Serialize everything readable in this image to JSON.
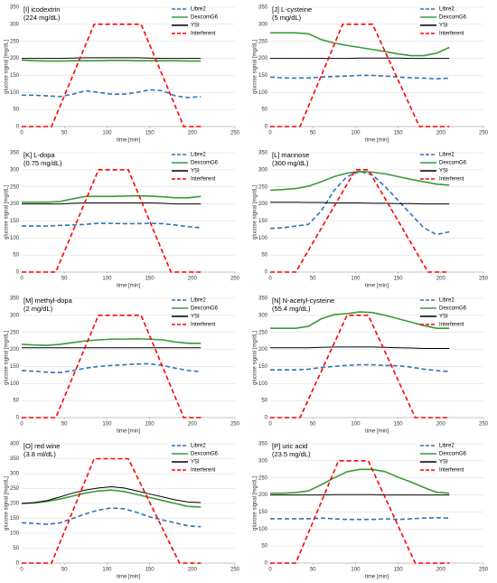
{
  "chart_data": [
    {
      "type": "line",
      "title": "[I] icodextrin",
      "subtitle": "(224 mg/dL)",
      "xlabel": "time [min]",
      "ylabel": "glucose signal [mg/dL]",
      "x": [
        0,
        15,
        30,
        45,
        60,
        75,
        90,
        105,
        120,
        135,
        150,
        165,
        180,
        195,
        210
      ],
      "xlim": [
        0,
        250
      ],
      "xticks": [
        0,
        50,
        100,
        150,
        200,
        250
      ],
      "ylim": [
        0,
        350
      ],
      "yticks": [
        0,
        50,
        100,
        150,
        200,
        250,
        300,
        350
      ],
      "legend": "top-right",
      "series": [
        {
          "name": "Libre2",
          "color": "#2e75b6",
          "style": "dashed",
          "values": [
            92,
            92,
            90,
            88,
            95,
            105,
            100,
            95,
            95,
            100,
            108,
            105,
            90,
            85,
            88
          ]
        },
        {
          "name": "DexcomG6",
          "color": "#3a9a3a",
          "style": "solid",
          "values": [
            195,
            193,
            192,
            192,
            193,
            193,
            193,
            194,
            194,
            193,
            193,
            193,
            193,
            192,
            192
          ]
        },
        {
          "name": "YSI",
          "color": "#000000",
          "style": "solid",
          "values": [
            200,
            200,
            200,
            200,
            201,
            202,
            202,
            202,
            202,
            202,
            201,
            200,
            200,
            200,
            200
          ]
        },
        {
          "name": "Interferent",
          "color": "#ff0000",
          "style": "dashed",
          "x": [
            0,
            35,
            85,
            140,
            190,
            210
          ],
          "values": [
            0,
            0,
            300,
            300,
            0,
            0
          ]
        }
      ]
    },
    {
      "type": "line",
      "title": "[J] L-cysteine",
      "subtitle": "(5 mg/dL)",
      "xlabel": "time [min]",
      "ylabel": "glucose signal [mg/dL]",
      "x": [
        0,
        15,
        30,
        45,
        60,
        75,
        90,
        105,
        120,
        135,
        150,
        165,
        180,
        195,
        210
      ],
      "xlim": [
        0,
        250
      ],
      "xticks": [
        0,
        50,
        100,
        150,
        200,
        250
      ],
      "ylim": [
        0,
        350
      ],
      "yticks": [
        0,
        50,
        100,
        150,
        200,
        250,
        300,
        350
      ],
      "legend": "top-right",
      "series": [
        {
          "name": "Libre2",
          "color": "#2e75b6",
          "style": "dashed",
          "values": [
            145,
            143,
            142,
            143,
            145,
            147,
            148,
            150,
            150,
            148,
            145,
            143,
            142,
            140,
            142
          ]
        },
        {
          "name": "DexcomG6",
          "color": "#3a9a3a",
          "style": "solid",
          "values": [
            275,
            275,
            275,
            272,
            255,
            245,
            238,
            232,
            226,
            220,
            213,
            208,
            208,
            215,
            232
          ]
        },
        {
          "name": "YSI",
          "color": "#000000",
          "style": "solid",
          "values": [
            200,
            200,
            200,
            200,
            200,
            200,
            200,
            201,
            201,
            201,
            201,
            200,
            200,
            200,
            200
          ]
        },
        {
          "name": "Interferent",
          "color": "#ff0000",
          "style": "dashed",
          "x": [
            0,
            35,
            85,
            120,
            175,
            210
          ],
          "values": [
            0,
            0,
            300,
            300,
            0,
            0
          ]
        }
      ]
    },
    {
      "type": "line",
      "title": "[K] L-dopa",
      "subtitle": "(0.75 mg/dL)",
      "xlabel": "time [min]",
      "ylabel": "glucose signal [mg/dL]",
      "x": [
        0,
        15,
        30,
        45,
        60,
        75,
        90,
        105,
        120,
        135,
        150,
        165,
        180,
        195,
        210
      ],
      "xlim": [
        0,
        250
      ],
      "xticks": [
        0,
        50,
        100,
        150,
        200,
        250
      ],
      "ylim": [
        0,
        350
      ],
      "yticks": [
        0,
        50,
        100,
        150,
        200,
        250,
        300,
        350
      ],
      "legend": "top-right",
      "series": [
        {
          "name": "Libre2",
          "color": "#2e75b6",
          "style": "dashed",
          "values": [
            135,
            135,
            135,
            137,
            138,
            140,
            143,
            143,
            142,
            142,
            143,
            142,
            138,
            133,
            130
          ]
        },
        {
          "name": "DexcomG6",
          "color": "#3a9a3a",
          "style": "solid",
          "values": [
            205,
            205,
            205,
            207,
            215,
            222,
            222,
            222,
            223,
            224,
            223,
            221,
            218,
            218,
            222
          ]
        },
        {
          "name": "YSI",
          "color": "#000000",
          "style": "solid",
          "values": [
            200,
            200,
            200,
            200,
            202,
            203,
            203,
            203,
            203,
            203,
            203,
            202,
            200,
            200,
            200
          ]
        },
        {
          "name": "Interferent",
          "color": "#ff0000",
          "style": "dashed",
          "x": [
            0,
            40,
            90,
            125,
            175,
            210
          ],
          "values": [
            0,
            0,
            300,
            300,
            0,
            0
          ]
        }
      ]
    },
    {
      "type": "line",
      "title": "[L] mannose",
      "subtitle": "(300 mg/dL)",
      "xlabel": "time [min]",
      "ylabel": "glucose signal [mg/dL]",
      "x": [
        0,
        15,
        30,
        45,
        60,
        75,
        90,
        105,
        120,
        135,
        150,
        165,
        180,
        195,
        210
      ],
      "xlim": [
        0,
        250
      ],
      "xticks": [
        0,
        50,
        100,
        150,
        200,
        250
      ],
      "ylim": [
        0,
        350
      ],
      "yticks": [
        0,
        50,
        100,
        150,
        200,
        250,
        300,
        350
      ],
      "legend": "top-right",
      "series": [
        {
          "name": "Libre2",
          "color": "#2e75b6",
          "style": "dashed",
          "values": [
            128,
            130,
            135,
            140,
            180,
            240,
            280,
            295,
            285,
            250,
            210,
            170,
            130,
            110,
            118
          ]
        },
        {
          "name": "DexcomG6",
          "color": "#3a9a3a",
          "style": "solid",
          "values": [
            240,
            242,
            245,
            252,
            265,
            280,
            290,
            295,
            293,
            288,
            280,
            272,
            265,
            258,
            255
          ]
        },
        {
          "name": "YSI",
          "color": "#000000",
          "style": "solid",
          "values": [
            205,
            205,
            205,
            204,
            204,
            203,
            203,
            203,
            202,
            202,
            201,
            201,
            200,
            200,
            200
          ]
        },
        {
          "name": "Interferent",
          "color": "#ff0000",
          "style": "dashed",
          "x": [
            0,
            30,
            100,
            115,
            185,
            210
          ],
          "values": [
            0,
            0,
            300,
            300,
            0,
            0
          ]
        }
      ]
    },
    {
      "type": "line",
      "title": "[M] methyl-dopa",
      "subtitle": "(2 mg/dL)",
      "xlabel": "time [min]",
      "ylabel": "glucose signal [mg/dL]",
      "x": [
        0,
        15,
        30,
        45,
        60,
        75,
        90,
        105,
        120,
        135,
        150,
        165,
        180,
        195,
        210
      ],
      "xlim": [
        0,
        250
      ],
      "xticks": [
        0,
        50,
        100,
        150,
        200,
        250
      ],
      "ylim": [
        0,
        350
      ],
      "yticks": [
        0,
        50,
        100,
        150,
        200,
        250,
        300,
        350
      ],
      "legend": "top-right",
      "series": [
        {
          "name": "Libre2",
          "color": "#2e75b6",
          "style": "dashed",
          "values": [
            138,
            136,
            133,
            132,
            138,
            145,
            150,
            153,
            155,
            157,
            158,
            153,
            145,
            138,
            135
          ]
        },
        {
          "name": "DexcomG6",
          "color": "#3a9a3a",
          "style": "solid",
          "values": [
            215,
            213,
            212,
            215,
            220,
            225,
            228,
            230,
            230,
            231,
            230,
            228,
            222,
            218,
            218
          ]
        },
        {
          "name": "YSI",
          "color": "#000000",
          "style": "solid",
          "values": [
            205,
            205,
            205,
            205,
            205,
            205,
            205,
            205,
            205,
            205,
            205,
            205,
            205,
            205,
            205
          ]
        },
        {
          "name": "Interferent",
          "color": "#ff0000",
          "style": "dashed",
          "x": [
            0,
            40,
            90,
            140,
            190,
            210
          ],
          "values": [
            0,
            0,
            300,
            300,
            0,
            0
          ]
        }
      ]
    },
    {
      "type": "line",
      "title": "[N] N-acetyl-cysteine",
      "subtitle": "(55.4 mg/dL)",
      "xlabel": "time [min]",
      "ylabel": "glucose signal [mg/dL]",
      "x": [
        0,
        15,
        30,
        45,
        60,
        75,
        90,
        105,
        120,
        135,
        150,
        165,
        180,
        195,
        210
      ],
      "xlim": [
        0,
        250
      ],
      "xticks": [
        0,
        50,
        100,
        150,
        200,
        250
      ],
      "ylim": [
        0,
        350
      ],
      "yticks": [
        0,
        50,
        100,
        150,
        200,
        250,
        300,
        350
      ],
      "legend": "top-right",
      "series": [
        {
          "name": "Libre2",
          "color": "#2e75b6",
          "style": "dashed",
          "values": [
            140,
            140,
            140,
            142,
            147,
            150,
            153,
            155,
            155,
            153,
            152,
            148,
            142,
            138,
            135
          ]
        },
        {
          "name": "DexcomG6",
          "color": "#3a9a3a",
          "style": "solid",
          "values": [
            262,
            262,
            262,
            268,
            290,
            302,
            305,
            310,
            308,
            300,
            290,
            280,
            270,
            262,
            262
          ]
        },
        {
          "name": "YSI",
          "color": "#000000",
          "style": "solid",
          "values": [
            205,
            205,
            205,
            205,
            206,
            207,
            207,
            207,
            207,
            206,
            205,
            204,
            203,
            203,
            203
          ]
        },
        {
          "name": "Interferent",
          "color": "#ff0000",
          "style": "dashed",
          "x": [
            0,
            35,
            90,
            115,
            170,
            210
          ],
          "values": [
            0,
            0,
            300,
            300,
            0,
            0
          ]
        }
      ]
    },
    {
      "type": "line",
      "title": "[O] red wine",
      "subtitle": "(3.8 ml/dL)",
      "xlabel": "time [min]",
      "ylabel": "glucose signal [mg/dL]",
      "x": [
        0,
        15,
        30,
        45,
        60,
        75,
        90,
        105,
        120,
        135,
        150,
        165,
        180,
        195,
        210
      ],
      "xlim": [
        0,
        250
      ],
      "xticks": [
        0,
        50,
        100,
        150,
        200,
        250
      ],
      "ylim": [
        0,
        400
      ],
      "yticks": [
        0,
        50,
        100,
        150,
        200,
        250,
        300,
        350,
        400
      ],
      "legend": "top-right",
      "series": [
        {
          "name": "Libre2",
          "color": "#2e75b6",
          "style": "dashed",
          "values": [
            135,
            133,
            130,
            135,
            150,
            165,
            178,
            185,
            182,
            170,
            155,
            145,
            135,
            125,
            122
          ]
        },
        {
          "name": "DexcomG6",
          "color": "#3a9a3a",
          "style": "solid",
          "values": [
            200,
            202,
            207,
            215,
            225,
            235,
            242,
            245,
            240,
            230,
            220,
            210,
            200,
            190,
            188
          ]
        },
        {
          "name": "YSI",
          "color": "#000000",
          "style": "solid",
          "values": [
            200,
            203,
            210,
            222,
            235,
            245,
            252,
            256,
            252,
            242,
            232,
            222,
            212,
            205,
            203
          ]
        },
        {
          "name": "Interferent",
          "color": "#ff0000",
          "style": "dashed",
          "x": [
            0,
            35,
            85,
            125,
            185,
            210
          ],
          "values": [
            0,
            0,
            350,
            350,
            0,
            0
          ]
        }
      ]
    },
    {
      "type": "line",
      "title": "[P] uric acid",
      "subtitle": "(23.5 mg/dL)",
      "xlabel": "time [min]",
      "ylabel": "glucose signal [mg/dL]",
      "x": [
        0,
        15,
        30,
        45,
        60,
        75,
        90,
        105,
        120,
        135,
        150,
        165,
        180,
        195,
        210
      ],
      "xlim": [
        0,
        250
      ],
      "xticks": [
        0,
        50,
        100,
        150,
        200,
        250
      ],
      "ylim": [
        0,
        350
      ],
      "yticks": [
        0,
        50,
        100,
        150,
        200,
        250,
        300,
        350
      ],
      "legend": "top-right",
      "series": [
        {
          "name": "Libre2",
          "color": "#2e75b6",
          "style": "dashed",
          "values": [
            130,
            130,
            130,
            130,
            132,
            130,
            128,
            128,
            128,
            130,
            128,
            130,
            132,
            133,
            132
          ]
        },
        {
          "name": "DexcomG6",
          "color": "#3a9a3a",
          "style": "solid",
          "values": [
            205,
            205,
            207,
            212,
            230,
            250,
            268,
            275,
            275,
            268,
            252,
            238,
            222,
            208,
            205
          ]
        },
        {
          "name": "YSI",
          "color": "#000000",
          "style": "solid",
          "values": [
            200,
            200,
            200,
            200,
            200,
            201,
            201,
            201,
            201,
            200,
            200,
            200,
            200,
            200,
            200
          ]
        },
        {
          "name": "Interferent",
          "color": "#ff0000",
          "style": "dashed",
          "x": [
            0,
            30,
            80,
            115,
            170,
            210
          ],
          "values": [
            0,
            0,
            300,
            300,
            0,
            0
          ]
        }
      ]
    }
  ]
}
